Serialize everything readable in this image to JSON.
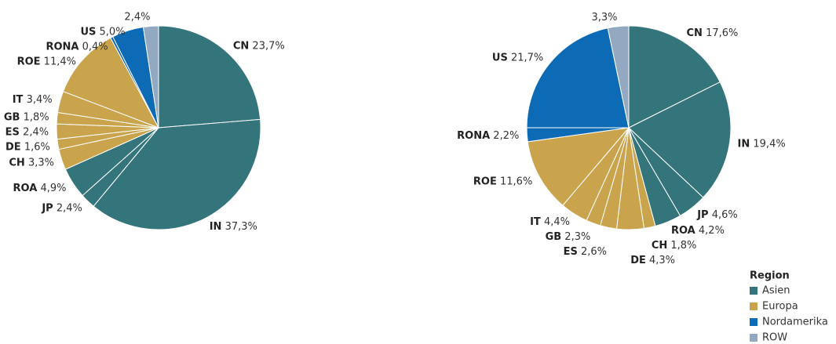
{
  "chart_data": [
    {
      "type": "pie",
      "categories": [
        "CN",
        "IN",
        "JP",
        "ROA",
        "CH",
        "DE",
        "ES",
        "GB",
        "IT",
        "ROE",
        "RONA",
        "US",
        null
      ],
      "values": [
        23.7,
        37.3,
        2.4,
        4.9,
        3.3,
        1.6,
        2.4,
        1.8,
        3.4,
        11.4,
        0.4,
        5.0,
        2.4
      ],
      "value_labels": [
        "23,7%",
        "37,3%",
        "2,4%",
        "4,9%",
        "3,3%",
        "1,6%",
        "2,4%",
        "1,8%",
        "3,4%",
        "11,4%",
        "0,4%",
        "5,0%",
        "2,4%"
      ],
      "colors": [
        "#34757b",
        "#34757b",
        "#34757b",
        "#34757b",
        "#c9a44c",
        "#c9a44c",
        "#c9a44c",
        "#c9a44c",
        "#c9a44c",
        "#c9a44c",
        "#0d6bb5",
        "#0d6bb5",
        "#93a9c1"
      ]
    },
    {
      "type": "pie",
      "categories": [
        "CN",
        "IN",
        "JP",
        "ROA",
        "CH",
        "DE",
        "ES",
        "GB",
        "IT",
        "ROE",
        "RONA",
        "US",
        null
      ],
      "values": [
        17.6,
        19.4,
        4.6,
        4.2,
        1.8,
        4.3,
        2.6,
        2.3,
        4.4,
        11.6,
        2.2,
        21.7,
        3.3
      ],
      "value_labels": [
        "17,6%",
        "19,4%",
        "4,6%",
        "4,2%",
        "1,8%",
        "4,3%",
        "2,6%",
        "2,3%",
        "4,4%",
        "11,6%",
        "2,2%",
        "21,7%",
        "3,3%"
      ],
      "colors": [
        "#34757b",
        "#34757b",
        "#34757b",
        "#34757b",
        "#c9a44c",
        "#c9a44c",
        "#c9a44c",
        "#c9a44c",
        "#c9a44c",
        "#c9a44c",
        "#0d6bb5",
        "#0d6bb5",
        "#93a9c1"
      ]
    }
  ],
  "legend": {
    "title": "Region",
    "items": [
      {
        "name": "Asien",
        "color": "#34757b"
      },
      {
        "name": "Europa",
        "color": "#c9a44c"
      },
      {
        "name": "Nordamerika",
        "color": "#0d6bb5"
      },
      {
        "name": "ROW",
        "color": "#93a9c1"
      }
    ]
  }
}
